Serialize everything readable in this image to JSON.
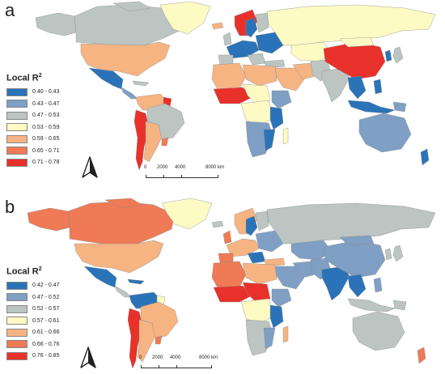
{
  "panels": [
    {
      "id": "a",
      "letter": "a",
      "legend_title": "Local R",
      "legend_title_sup": "2",
      "classes": [
        {
          "label": "0.40 - 0.43",
          "color": "#2b73b8"
        },
        {
          "label": "0.43 - 0.47",
          "color": "#7f9fc4"
        },
        {
          "label": "0.47 - 0.53",
          "color": "#bcc5c2"
        },
        {
          "label": "0.53 - 0.59",
          "color": "#fdfbc3"
        },
        {
          "label": "0.59 - 0.65",
          "color": "#f6b482"
        },
        {
          "label": "0.65 - 0.71",
          "color": "#ef7a55"
        },
        {
          "label": "0.71 - 0.78",
          "color": "#e8312a"
        }
      ],
      "scale": {
        "labels": [
          "0",
          "2000",
          "4000",
          "8000 km"
        ]
      }
    },
    {
      "id": "b",
      "letter": "b",
      "legend_title": "Local R",
      "legend_title_sup": "2",
      "classes": [
        {
          "label": "0.42 - 0.47",
          "color": "#2b73b8"
        },
        {
          "label": "0.47 - 0.52",
          "color": "#7f9fc4"
        },
        {
          "label": "0.52 - 0.57",
          "color": "#bcc5c2"
        },
        {
          "label": "0.57 - 0.61",
          "color": "#fdfbc3"
        },
        {
          "label": "0.61 - 0.66",
          "color": "#f6b482"
        },
        {
          "label": "0.66 - 0.76",
          "color": "#ef7a55"
        },
        {
          "label": "0.76 - 0.85",
          "color": "#e8312a"
        }
      ],
      "scale": {
        "labels": [
          "0",
          "2000",
          "4000",
          "8000 km"
        ]
      }
    }
  ],
  "colors": {
    "c1": "#2b73b8",
    "c2": "#7f9fc4",
    "c3": "#bcc5c2",
    "c4": "#fdfbc3",
    "c5": "#f6b482",
    "c6": "#ef7a55",
    "c7": "#e8312a",
    "border": "#8a8a8a"
  }
}
